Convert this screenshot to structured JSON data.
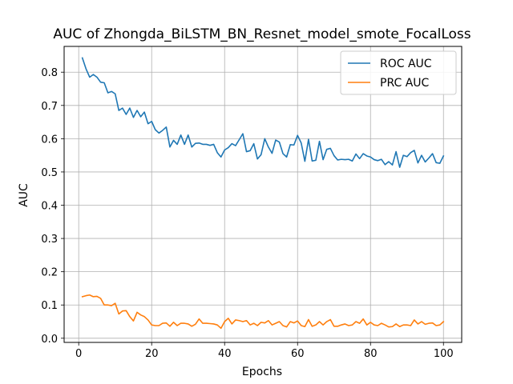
{
  "chart_data": {
    "type": "line",
    "title": "AUC of Zhongda_BiLSTM_BN_Resnet_model_smote_FocalLoss",
    "xlabel": "Epochs",
    "ylabel": "AUC",
    "xlim": [
      -4,
      105
    ],
    "ylim": [
      -0.0125,
      0.8775
    ],
    "xticks": [
      0,
      20,
      40,
      60,
      80,
      100
    ],
    "yticks": [
      0.0,
      0.1,
      0.2,
      0.3,
      0.4,
      0.5,
      0.6,
      0.7,
      0.8
    ],
    "ytick_labels": [
      "0.0",
      "0.1",
      "0.2",
      "0.3",
      "0.4",
      "0.5",
      "0.6",
      "0.7",
      "0.8"
    ],
    "grid": true,
    "legend_position": "top-right",
    "x": [
      1,
      2,
      3,
      4,
      5,
      6,
      7,
      8,
      9,
      10,
      11,
      12,
      13,
      14,
      15,
      16,
      17,
      18,
      19,
      20,
      21,
      22,
      23,
      24,
      25,
      26,
      27,
      28,
      29,
      30,
      31,
      32,
      33,
      34,
      35,
      36,
      37,
      38,
      39,
      40,
      41,
      42,
      43,
      44,
      45,
      46,
      47,
      48,
      49,
      50,
      51,
      52,
      53,
      54,
      55,
      56,
      57,
      58,
      59,
      60,
      61,
      62,
      63,
      64,
      65,
      66,
      67,
      68,
      69,
      70,
      71,
      72,
      73,
      74,
      75,
      76,
      77,
      78,
      79,
      80,
      81,
      82,
      83,
      84,
      85,
      86,
      87,
      88,
      89,
      90,
      91,
      92,
      93,
      94,
      95,
      96,
      97,
      98,
      99,
      100
    ],
    "series": [
      {
        "name": "ROC AUC",
        "color": "#1f77b4",
        "values": [
          0.843,
          0.81,
          0.785,
          0.793,
          0.785,
          0.77,
          0.768,
          0.738,
          0.742,
          0.735,
          0.685,
          0.692,
          0.673,
          0.692,
          0.664,
          0.685,
          0.666,
          0.68,
          0.645,
          0.652,
          0.627,
          0.617,
          0.625,
          0.635,
          0.575,
          0.595,
          0.583,
          0.611,
          0.583,
          0.611,
          0.575,
          0.586,
          0.587,
          0.583,
          0.583,
          0.58,
          0.583,
          0.558,
          0.545,
          0.566,
          0.573,
          0.585,
          0.579,
          0.597,
          0.615,
          0.561,
          0.564,
          0.585,
          0.539,
          0.552,
          0.6,
          0.575,
          0.556,
          0.596,
          0.59,
          0.555,
          0.545,
          0.582,
          0.581,
          0.61,
          0.587,
          0.532,
          0.598,
          0.533,
          0.535,
          0.592,
          0.537,
          0.568,
          0.571,
          0.549,
          0.536,
          0.538,
          0.537,
          0.538,
          0.533,
          0.554,
          0.54,
          0.555,
          0.548,
          0.545,
          0.537,
          0.534,
          0.538,
          0.522,
          0.531,
          0.521,
          0.561,
          0.514,
          0.55,
          0.546,
          0.558,
          0.565,
          0.527,
          0.55,
          0.53,
          0.542,
          0.555,
          0.528,
          0.526,
          0.548
        ]
      },
      {
        "name": "PRC AUC",
        "color": "#ff7f0e",
        "values": [
          0.125,
          0.128,
          0.13,
          0.125,
          0.126,
          0.12,
          0.1,
          0.1,
          0.098,
          0.105,
          0.073,
          0.082,
          0.083,
          0.065,
          0.052,
          0.078,
          0.07,
          0.065,
          0.055,
          0.04,
          0.038,
          0.038,
          0.045,
          0.046,
          0.036,
          0.048,
          0.038,
          0.045,
          0.045,
          0.043,
          0.036,
          0.042,
          0.058,
          0.045,
          0.045,
          0.044,
          0.043,
          0.04,
          0.03,
          0.05,
          0.06,
          0.043,
          0.055,
          0.053,
          0.05,
          0.053,
          0.04,
          0.045,
          0.038,
          0.048,
          0.046,
          0.053,
          0.04,
          0.045,
          0.05,
          0.038,
          0.034,
          0.05,
          0.046,
          0.052,
          0.038,
          0.035,
          0.056,
          0.036,
          0.04,
          0.05,
          0.04,
          0.05,
          0.056,
          0.036,
          0.036,
          0.04,
          0.043,
          0.038,
          0.04,
          0.05,
          0.045,
          0.058,
          0.04,
          0.048,
          0.04,
          0.038,
          0.045,
          0.04,
          0.034,
          0.035,
          0.043,
          0.035,
          0.04,
          0.04,
          0.038,
          0.055,
          0.043,
          0.05,
          0.042,
          0.045,
          0.046,
          0.038,
          0.04,
          0.05
        ]
      }
    ]
  }
}
